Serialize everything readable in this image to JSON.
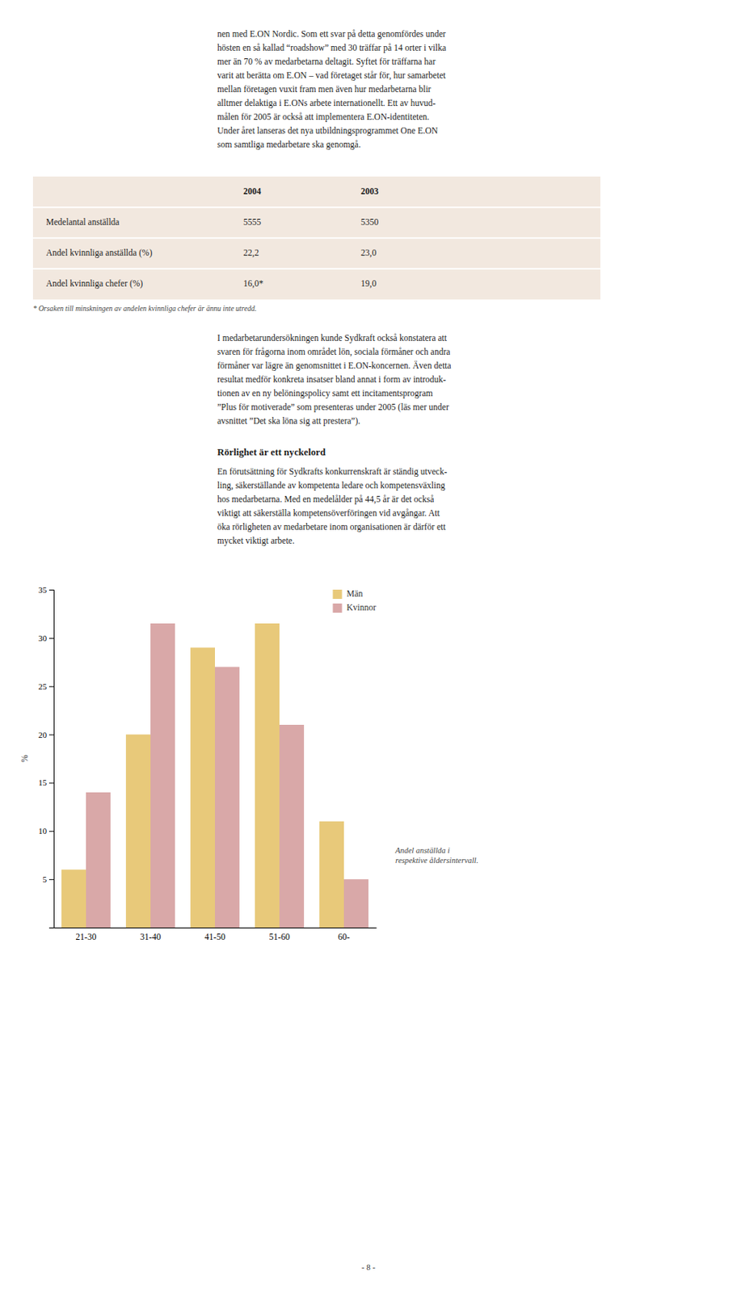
{
  "chart_data": {
    "type": "bar",
    "categories": [
      "21-30",
      "31-40",
      "41-50",
      "51-60",
      "60-"
    ],
    "series": [
      {
        "name": "Män",
        "color": "#e8c97a",
        "values": [
          6,
          20,
          29,
          31.5,
          11
        ]
      },
      {
        "name": "Kvinnor",
        "color": "#d9a8a8",
        "values": [
          14,
          31.5,
          27,
          21,
          5
        ]
      }
    ],
    "ylabel": "%",
    "ylim": [
      0,
      35
    ],
    "yticks": [
      5,
      10,
      15,
      20,
      25,
      30,
      35
    ],
    "legend": "upper right",
    "grid": false,
    "annotation": "Andel anställda i\nrespektive åldersintervall."
  },
  "page": {
    "top_text_lines": [
      "nen med E.ON Nordic. Som ett svar på detta genomfördes under",
      "hösten en så kallad “roadshow” med 30 träffar på 14 orter i vilka",
      "mer än 70 % av medarbetarna deltagit. Syftet för träffarna har",
      "varit att berätta om E.ON – vad företaget står för, hur samarbetet",
      "mellan företagen vuxit fram men även hur medarbetarna blir",
      "alltmer delaktiga i E.ONs arbete internationellt. Ett av huvud-",
      "målen för 2005 är också att implementera E.ON-identiteten.",
      "Under året lanseras det nya utbildningsprogrammet One E.ON",
      "som samtliga medarbetare ska genomgå."
    ],
    "table": {
      "col_headers": [
        "2004",
        "2003"
      ],
      "rows": [
        [
          "Medelantal anställda",
          "5555",
          "5350"
        ],
        [
          "Andel kvinnliga anställda (%)",
          "22,2",
          "23,0"
        ],
        [
          "Andel kvinnliga chefer (%)",
          "16,0*",
          "19,0"
        ]
      ],
      "footnote": "* Orsaken till minskningen av andelen kvinnliga chefer är ännu inte utredd."
    },
    "mid_text_lines": [
      "I medarbetarundersökningen kunde Sydkraft också konstatera att",
      "svaren för frågorna inom området lön, sociala förmåner och andra",
      "förmåner var lägre än genomsnittet i E.ON-koncernen. Även detta",
      "resultat medför konkreta insatser bland annat i form av introduk-",
      "tionen av en ny belöningspolicy samt ett incitamentsprogram",
      "”Plus för motiverade” som presenteras under 2005 (läs mer under",
      "avsnittet ”Det ska löna sig att prestera”)."
    ],
    "section_heading": "Rörlighet är ett nyckelord",
    "section_text_lines": [
      "En förutsättning för Sydkrafts konkurrenskraft är ständig utveck-",
      "ling, säkerställande av kompetenta ledare och kompetensväxling",
      "hos medarbetarna. Med en medelålder på 44,5 år är det också",
      "viktigt att säkerställa kompetensöverföringen vid avgångar. Att",
      "öka rörligheten av medarbetare inom organisationen är därför ett",
      "mycket viktigt arbete."
    ],
    "page_number": "- 8 -"
  }
}
